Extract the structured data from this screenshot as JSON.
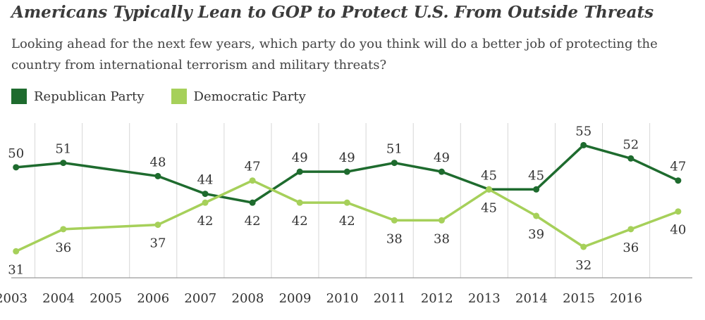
{
  "chart_data": {
    "type": "line",
    "title": "Americans Typically Lean to GOP to Protect U.S. From Outside Threats",
    "subtitle": "Looking ahead for the next few years, which party do you think will do a better job of protecting the country from international terrorism and military threats?",
    "x_ticks": [
      "2003",
      "2004",
      "2005",
      "2006",
      "2007",
      "2008",
      "2009",
      "2010",
      "2011",
      "2012",
      "2013",
      "2014",
      "2015",
      "2016"
    ],
    "x": [
      2002.6,
      2003.6,
      2005.6,
      2006.6,
      2007.6,
      2008.6,
      2009.6,
      2010.6,
      2011.6,
      2012.6,
      2013.6,
      2014.6,
      2015.6,
      2016.6
    ],
    "series": [
      {
        "name": "Republican Party",
        "color": "#1e6b2e",
        "values": [
          50,
          51,
          48,
          44,
          42,
          49,
          49,
          51,
          49,
          45,
          45,
          55,
          52,
          47
        ],
        "labels": [
          "50",
          "51",
          "48",
          "44",
          "42",
          "49",
          "49",
          "51",
          "49",
          "45",
          "45",
          "55",
          "52",
          "47"
        ]
      },
      {
        "name": "Democratic Party",
        "color": "#a6d05a",
        "values": [
          31,
          36,
          37,
          42,
          47,
          42,
          42,
          38,
          38,
          45,
          39,
          32,
          36,
          40
        ],
        "labels": [
          "31",
          "36",
          "37",
          "42",
          "47",
          "42",
          "42",
          "38",
          "38",
          "45",
          "39",
          "32",
          "36",
          "40"
        ]
      }
    ],
    "xlim": [
      2002.5,
      2016.9
    ],
    "ylim": [
      25,
      60
    ],
    "grid": "vertical",
    "legend": "top-left"
  }
}
